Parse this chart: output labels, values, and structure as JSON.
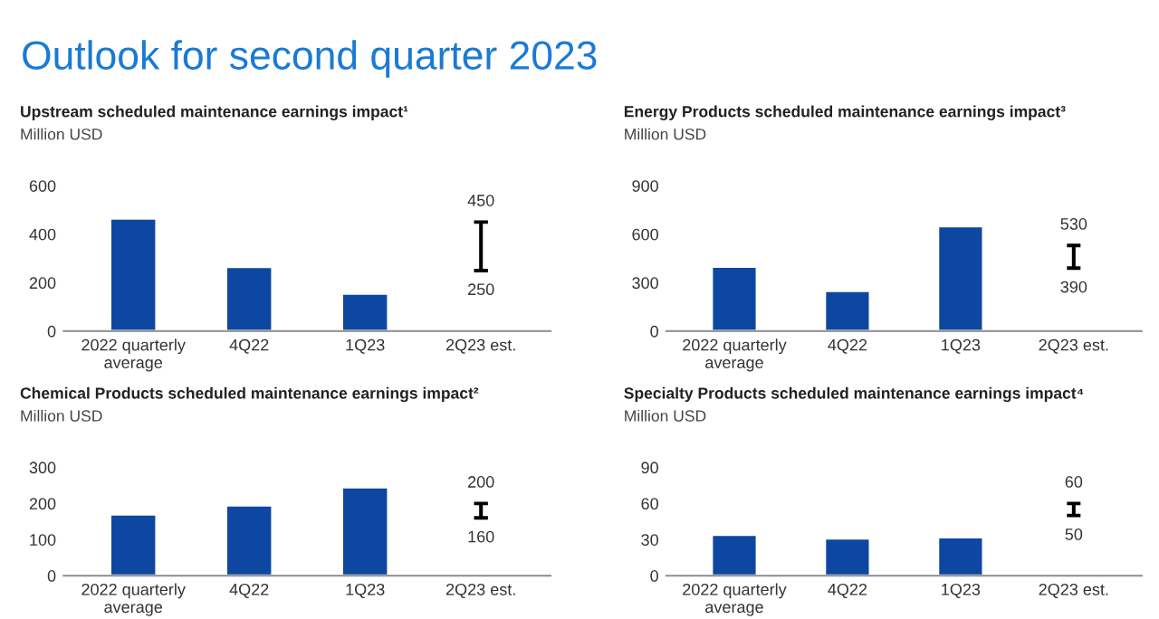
{
  "chart_data": [
    {
      "type": "other",
      "title": "Outlook for second quarter 2023"
    },
    {
      "type": "bar",
      "title": "Upstream scheduled maintenance earnings impact¹",
      "ylabel": "Million USD",
      "categories": [
        "2022 quarterly\naverage",
        "4Q22",
        "1Q23",
        "2Q23 est."
      ],
      "series": [
        {
          "color": "#0d47a1",
          "values": [
            465,
            265,
            155,
            null
          ]
        },
        {
          "type": "bar",
          "color": "#000000",
          "base": [
            null,
            null,
            null,
            250
          ],
          "values": [
            null,
            null,
            null,
            200
          ]
        }
      ],
      "annotations": [
        {
          "text": "450",
          "x": "2Q23 est.",
          "y": 450
        },
        {
          "text": "250",
          "x": "2Q23 est.",
          "y": 250
        }
      ],
      "ylim": [
        0,
        600
      ],
      "yticks": [
        0,
        200,
        400,
        600
      ],
      "grid": false,
      "legend": false
    },
    {
      "type": "bar",
      "title": "Energy Products scheduled maintenance earnings impact³",
      "ylabel": "Million USD",
      "categories": [
        "2022 quarterly\naverage",
        "4Q22",
        "1Q23",
        "2Q23 est."
      ],
      "series": [
        {
          "color": "#0d47a1",
          "values": [
            400,
            250,
            650,
            null
          ]
        },
        {
          "type": "bar",
          "color": "#000000",
          "base": [
            null,
            null,
            null,
            390
          ],
          "values": [
            null,
            null,
            null,
            140
          ]
        }
      ],
      "annotations": [
        {
          "text": "530",
          "x": "2Q23 est.",
          "y": 530
        },
        {
          "text": "390",
          "x": "2Q23 est.",
          "y": 390
        }
      ],
      "ylim": [
        0,
        900
      ],
      "yticks": [
        0,
        300,
        600,
        900
      ],
      "grid": false,
      "legend": false
    },
    {
      "type": "bar",
      "title": "Chemical Products scheduled maintenance earnings impact²",
      "ylabel": "Million USD",
      "categories": [
        "2022 quarterly\naverage",
        "4Q22",
        "1Q23",
        "2Q23 est."
      ],
      "series": [
        {
          "color": "#0d47a1",
          "values": [
            170,
            195,
            245,
            null
          ]
        },
        {
          "type": "bar",
          "color": "#000000",
          "base": [
            null,
            null,
            null,
            160
          ],
          "values": [
            null,
            null,
            null,
            40
          ]
        }
      ],
      "annotations": [
        {
          "text": "200",
          "x": "2Q23 est.",
          "y": 200
        },
        {
          "text": "160",
          "x": "2Q23 est.",
          "y": 160
        }
      ],
      "ylim": [
        0,
        300
      ],
      "yticks": [
        0,
        100,
        200,
        300
      ],
      "grid": false,
      "legend": false
    },
    {
      "type": "bar",
      "title": "Specialty Products scheduled maintenance earnings impact⁴",
      "ylabel": "Million USD",
      "categories": [
        "2022 quarterly\naverage",
        "4Q22",
        "1Q23",
        "2Q23 est."
      ],
      "series": [
        {
          "color": "#0d47a1",
          "values": [
            34,
            31,
            32,
            null
          ]
        },
        {
          "type": "bar",
          "color": "#000000",
          "base": [
            null,
            null,
            null,
            50
          ],
          "values": [
            null,
            null,
            null,
            10
          ]
        }
      ],
      "annotations": [
        {
          "text": "60",
          "x": "2Q23 est.",
          "y": 60
        },
        {
          "text": "50",
          "x": "2Q23 est.",
          "y": 50
        }
      ],
      "ylim": [
        0,
        90
      ],
      "yticks": [
        0,
        30,
        60,
        90
      ],
      "grid": false,
      "legend": false
    }
  ]
}
